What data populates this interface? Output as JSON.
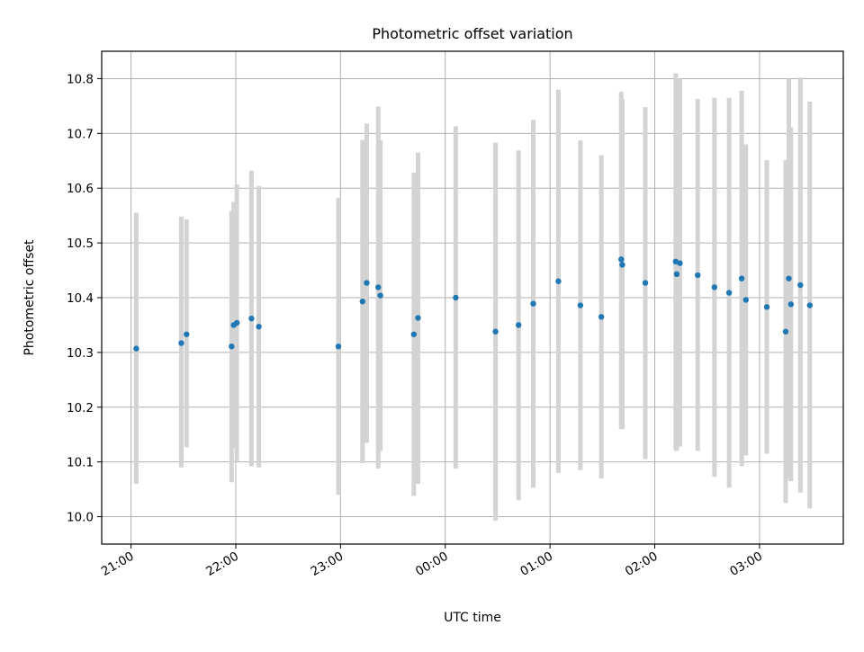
{
  "chart_data": {
    "type": "scatter",
    "title": "Photometric offset variation",
    "xlabel": "UTC time",
    "ylabel": "Photometric offset",
    "x_unit": "hours",
    "x_ticks": [
      "21:00",
      "22:00",
      "23:00",
      "00:00",
      "01:00",
      "02:00",
      "03:00"
    ],
    "x_tick_hours": [
      0,
      1,
      2,
      3,
      4,
      5,
      6
    ],
    "y_ticks": [
      "10.0",
      "10.1",
      "10.2",
      "10.3",
      "10.4",
      "10.5",
      "10.6",
      "10.7",
      "10.8"
    ],
    "xlim": [
      -0.28,
      6.8
    ],
    "ylim": [
      9.95,
      10.85
    ],
    "grid": true,
    "marker_color": "#1f77b4",
    "errorbar_color": "#d3d3d3",
    "points": [
      {
        "t": 0.05,
        "y": 10.307,
        "lo": 10.06,
        "hi": 10.555
      },
      {
        "t": 0.48,
        "y": 10.317,
        "lo": 10.09,
        "hi": 10.548
      },
      {
        "t": 0.53,
        "y": 10.333,
        "lo": 10.127,
        "hi": 10.543
      },
      {
        "t": 0.96,
        "y": 10.311,
        "lo": 10.063,
        "hi": 10.558
      },
      {
        "t": 0.98,
        "y": 10.35,
        "lo": 10.125,
        "hi": 10.575
      },
      {
        "t": 1.01,
        "y": 10.354,
        "lo": 10.1,
        "hi": 10.607
      },
      {
        "t": 1.15,
        "y": 10.362,
        "lo": 10.092,
        "hi": 10.632
      },
      {
        "t": 1.22,
        "y": 10.347,
        "lo": 10.09,
        "hi": 10.604
      },
      {
        "t": 1.98,
        "y": 10.311,
        "lo": 10.04,
        "hi": 10.582
      },
      {
        "t": 2.21,
        "y": 10.393,
        "lo": 10.098,
        "hi": 10.688
      },
      {
        "t": 2.25,
        "y": 10.427,
        "lo": 10.135,
        "hi": 10.718
      },
      {
        "t": 2.36,
        "y": 10.419,
        "lo": 10.088,
        "hi": 10.749
      },
      {
        "t": 2.38,
        "y": 10.404,
        "lo": 10.12,
        "hi": 10.688
      },
      {
        "t": 2.7,
        "y": 10.333,
        "lo": 10.038,
        "hi": 10.628
      },
      {
        "t": 2.74,
        "y": 10.363,
        "lo": 10.06,
        "hi": 10.665
      },
      {
        "t": 3.1,
        "y": 10.4,
        "lo": 10.088,
        "hi": 10.713
      },
      {
        "t": 3.48,
        "y": 10.338,
        "lo": 9.993,
        "hi": 10.683
      },
      {
        "t": 3.7,
        "y": 10.35,
        "lo": 10.03,
        "hi": 10.669
      },
      {
        "t": 3.84,
        "y": 10.389,
        "lo": 10.053,
        "hi": 10.725
      },
      {
        "t": 4.08,
        "y": 10.43,
        "lo": 10.08,
        "hi": 10.78
      },
      {
        "t": 4.29,
        "y": 10.386,
        "lo": 10.085,
        "hi": 10.687
      },
      {
        "t": 4.49,
        "y": 10.365,
        "lo": 10.07,
        "hi": 10.66
      },
      {
        "t": 4.68,
        "y": 10.47,
        "lo": 10.16,
        "hi": 10.776
      },
      {
        "t": 4.69,
        "y": 10.46,
        "lo": 10.16,
        "hi": 10.762
      },
      {
        "t": 4.91,
        "y": 10.427,
        "lo": 10.105,
        "hi": 10.748
      },
      {
        "t": 5.2,
        "y": 10.466,
        "lo": 10.122,
        "hi": 10.81
      },
      {
        "t": 5.21,
        "y": 10.443,
        "lo": 10.12,
        "hi": 10.766
      },
      {
        "t": 5.24,
        "y": 10.463,
        "lo": 10.128,
        "hi": 10.8
      },
      {
        "t": 5.41,
        "y": 10.441,
        "lo": 10.12,
        "hi": 10.763
      },
      {
        "t": 5.57,
        "y": 10.419,
        "lo": 10.073,
        "hi": 10.765
      },
      {
        "t": 5.71,
        "y": 10.409,
        "lo": 10.053,
        "hi": 10.765
      },
      {
        "t": 5.83,
        "y": 10.435,
        "lo": 10.092,
        "hi": 10.778
      },
      {
        "t": 5.87,
        "y": 10.396,
        "lo": 10.112,
        "hi": 10.68
      },
      {
        "t": 6.07,
        "y": 10.383,
        "lo": 10.115,
        "hi": 10.651
      },
      {
        "t": 6.25,
        "y": 10.338,
        "lo": 10.025,
        "hi": 10.651
      },
      {
        "t": 6.28,
        "y": 10.435,
        "lo": 10.07,
        "hi": 10.8
      },
      {
        "t": 6.3,
        "y": 10.388,
        "lo": 10.065,
        "hi": 10.711
      },
      {
        "t": 6.39,
        "y": 10.423,
        "lo": 10.044,
        "hi": 10.802
      },
      {
        "t": 6.48,
        "y": 10.386,
        "lo": 10.015,
        "hi": 10.758
      }
    ]
  }
}
